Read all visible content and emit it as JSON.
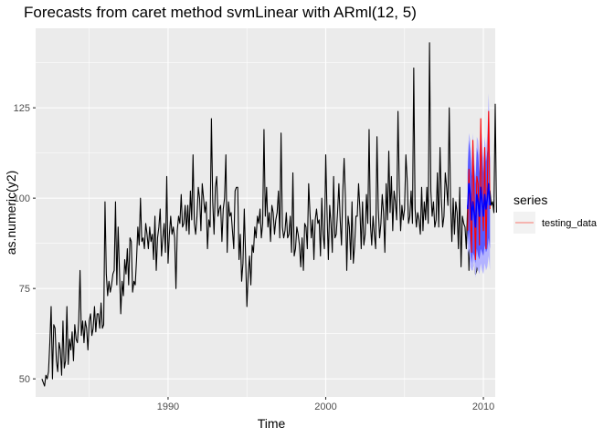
{
  "chart_data": {
    "type": "line",
    "title": "Forecasts from caret method svmLinear with ARml(12,  5)",
    "xlabel": "Time",
    "ylabel": "as.numeric(y2)",
    "xlim": [
      1981.6,
      2010.75
    ],
    "ylim": [
      45,
      147
    ],
    "x_ticks": [
      {
        "value": 1990,
        "label": "1990"
      },
      {
        "value": 2000,
        "label": "2000"
      },
      {
        "value": 2010,
        "label": "2010"
      }
    ],
    "y_ticks": [
      {
        "value": 50,
        "label": "50"
      },
      {
        "value": 75,
        "label": "75"
      },
      {
        "value": 100,
        "label": "100"
      },
      {
        "value": 125,
        "label": "125"
      }
    ],
    "grid": true,
    "legend": {
      "title": "series",
      "position": "right",
      "entries": [
        {
          "name": "testing_data",
          "color": "#f8766d"
        }
      ]
    },
    "colors": {
      "panel": "#ebebeb",
      "grid_major": "#ffffff",
      "history": "#000000",
      "forecast": "#0000ff",
      "pi80": "#5a5aff",
      "pi95": "#b3b3ff",
      "testing": "#ff0000"
    },
    "history": {
      "start": 1982.0,
      "frequency": 12,
      "values": [
        50,
        49,
        48,
        51,
        50,
        52,
        60,
        70,
        50,
        65,
        64,
        55,
        52,
        60,
        58,
        51,
        66,
        53,
        55,
        70,
        54,
        61,
        58,
        63,
        55,
        65,
        61,
        60,
        66,
        80,
        62,
        66,
        60,
        66,
        64,
        58,
        66,
        68,
        62,
        64,
        70,
        63,
        68,
        68,
        64,
        71,
        64,
        65,
        99,
        79,
        73,
        77,
        74,
        76,
        79,
        80,
        99,
        76,
        92,
        80,
        68,
        77,
        73,
        83,
        79,
        86,
        76,
        89,
        88,
        74,
        77,
        76,
        83,
        92,
        87,
        100,
        88,
        89,
        86,
        93,
        90,
        86,
        92,
        88,
        90,
        83,
        95,
        80,
        89,
        92,
        97,
        84,
        89,
        93,
        85,
        106,
        82,
        90,
        95,
        90,
        92,
        89,
        75,
        91,
        95,
        93,
        101,
        92,
        93,
        98,
        91,
        98,
        90,
        102,
        94,
        112,
        93,
        90,
        95,
        103,
        100,
        91,
        104,
        100,
        96,
        99,
        86,
        94,
        92,
        122,
        99,
        90,
        103,
        106,
        95,
        97,
        98,
        88,
        97,
        100,
        112,
        85,
        99,
        95,
        96,
        91,
        86,
        102,
        103,
        103,
        83,
        90,
        77,
        82,
        97,
        84,
        70,
        79,
        84,
        76,
        87,
        85,
        92,
        89,
        95,
        93,
        97,
        89,
        93,
        119,
        95,
        103,
        92,
        96,
        88,
        98,
        96,
        90,
        94,
        96,
        102,
        89,
        118,
        92,
        89,
        91,
        96,
        89,
        90,
        95,
        85,
        107,
        84,
        86,
        92,
        90,
        87,
        81,
        89,
        80,
        93,
        92,
        86,
        104,
        96,
        89,
        94,
        83,
        94,
        97,
        93,
        94,
        84,
        100,
        90,
        86,
        112,
        96,
        83,
        98,
        93,
        85,
        106,
        89,
        90,
        96,
        104,
        94,
        87,
        102,
        111,
        100,
        80,
        95,
        92,
        83,
        99,
        82,
        87,
        95,
        95,
        104,
        97,
        86,
        99,
        87,
        90,
        101,
        93,
        119,
        93,
        87,
        95,
        90,
        86,
        117,
        97,
        89,
        93,
        101,
        96,
        85,
        104,
        94,
        113,
        96,
        106,
        91,
        102,
        99,
        94,
        124,
        103,
        91,
        98,
        94,
        97,
        112,
        105,
        93,
        95,
        102,
        93,
        136,
        97,
        92,
        96,
        94,
        90,
        103,
        91,
        99,
        94,
        103,
        93,
        143,
        102,
        95,
        99,
        92,
        94,
        107,
        92,
        114,
        100,
        92,
        95,
        107,
        103,
        98,
        125,
        99,
        88,
        100,
        90,
        99,
        96,
        86,
        103,
        81,
        95,
        93,
        92,
        86,
        98,
        80,
        100,
        94,
        81,
        97,
        79,
        80,
        89,
        84,
        93,
        86,
        88,
        98,
        104,
        98,
        103,
        102,
        98,
        99,
        96,
        126,
        96
      ]
    },
    "test_start": 2009.0,
    "testing_values": [
      91,
      108,
      96,
      85,
      116,
      99,
      83,
      106,
      104,
      87,
      122,
      100,
      91,
      114,
      86,
      104,
      124,
      97
    ],
    "forecast": {
      "start": 2009.0,
      "point": [
        97,
        104,
        101,
        94,
        99,
        96,
        92,
        101,
        99,
        95,
        103,
        99,
        95,
        101,
        97,
        100,
        104,
        98
      ],
      "lo80": [
        87,
        91,
        86,
        82,
        85,
        84,
        82,
        86,
        84,
        83,
        86,
        85,
        84,
        87,
        85,
        86,
        89,
        86
      ],
      "hi80": [
        107,
        116,
        113,
        106,
        112,
        108,
        104,
        114,
        112,
        107,
        117,
        112,
        107,
        114,
        110,
        113,
        118,
        111
      ],
      "lo95": [
        84,
        86,
        81,
        80,
        80,
        83,
        78,
        81,
        80,
        79,
        82,
        80,
        79,
        82,
        80,
        81,
        84,
        80
      ],
      "hi95": [
        110,
        118,
        116,
        110,
        118,
        111,
        106,
        117,
        116,
        112,
        121,
        116,
        111,
        117,
        113,
        118,
        129,
        116
      ]
    }
  }
}
